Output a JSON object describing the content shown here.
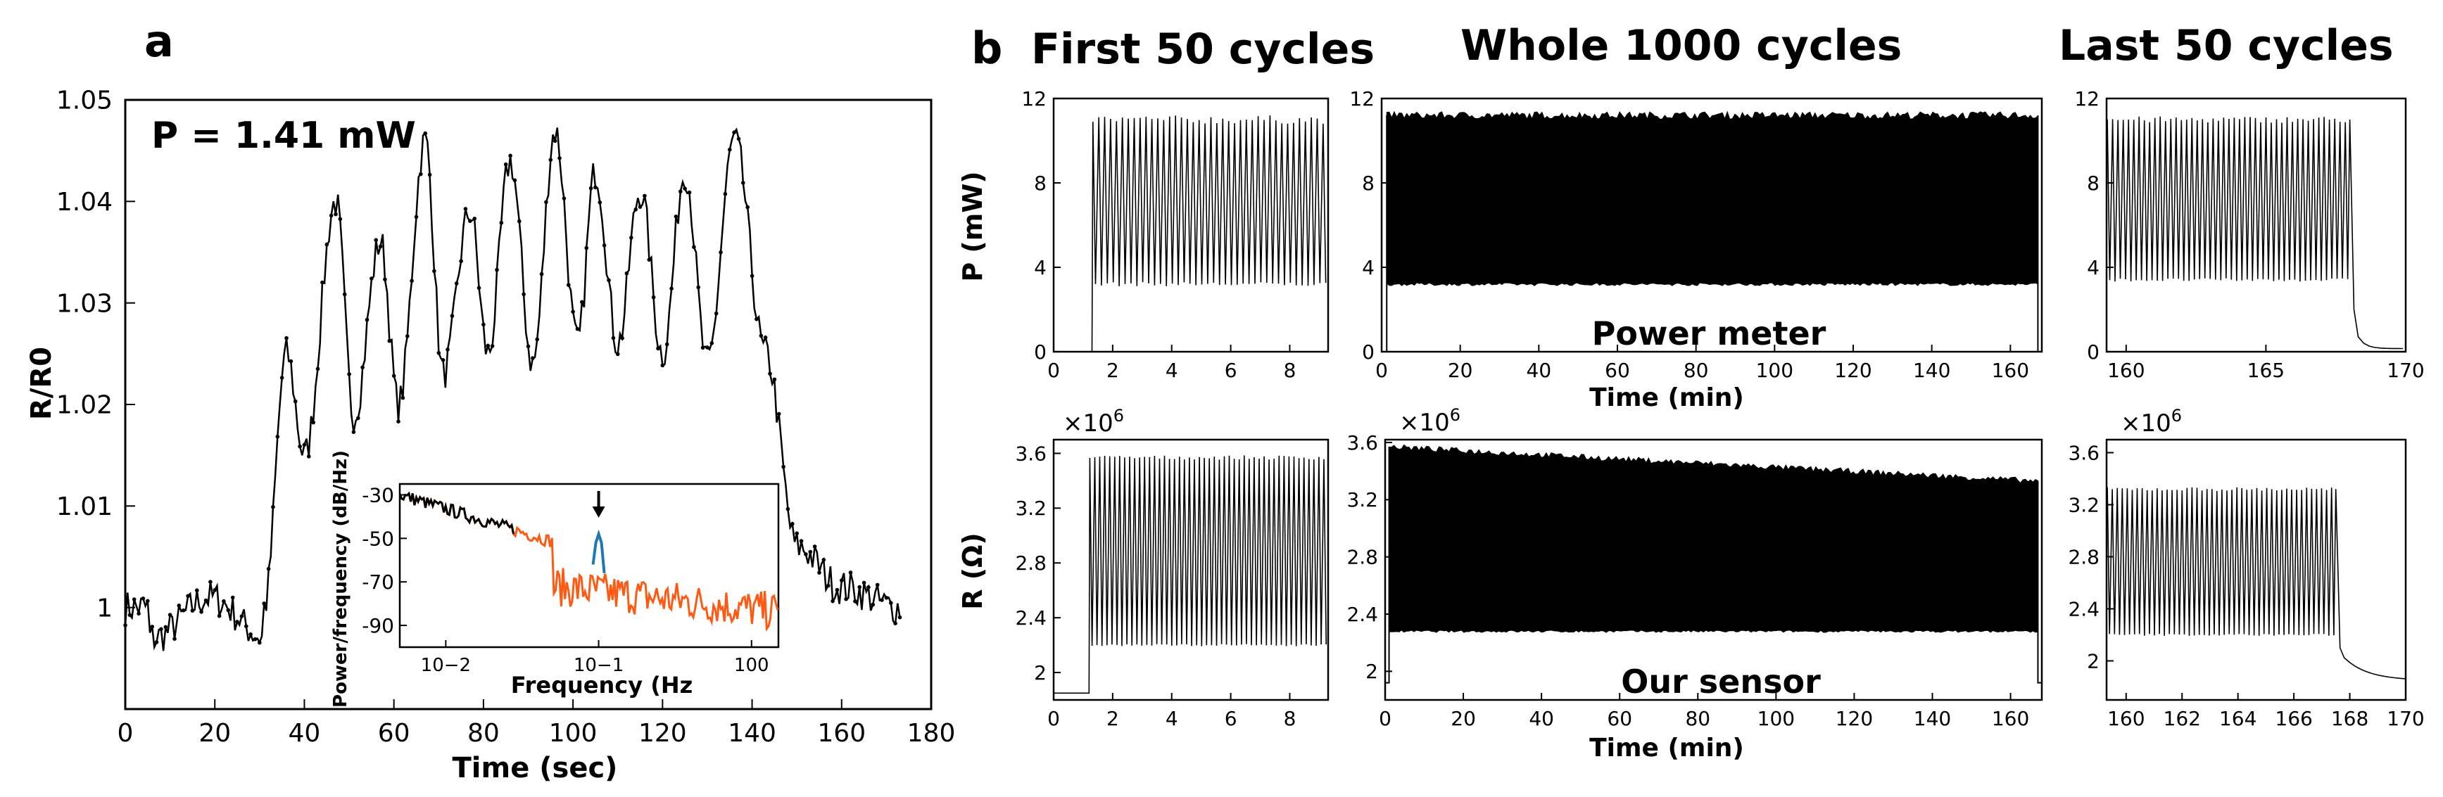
{
  "panel_labels": {
    "a": "a",
    "b": "b"
  },
  "column_titles": {
    "first": "First 50 cycles",
    "whole": "Whole 1000 cycles",
    "last": "Last 50 cycles"
  },
  "chart_data": [
    {
      "id": "a_main",
      "type": "line",
      "annotation": "P = 1.41 mW",
      "xlabel": "Time (sec)",
      "ylabel": "R/R0",
      "xlim": [
        0,
        180
      ],
      "ylim": [
        0.99,
        1.05
      ],
      "x_ticks": [
        "0",
        "20",
        "40",
        "60",
        "80",
        "100",
        "120",
        "140",
        "160",
        "180"
      ],
      "y_ticks": [
        "1",
        "1.01",
        "1.02",
        "1.03",
        "1.04",
        "1.05"
      ],
      "baseline": 1.0,
      "peaks": [
        {
          "x": 36,
          "y": 1.025
        },
        {
          "x": 47,
          "y": 1.04
        },
        {
          "x": 57,
          "y": 1.036
        },
        {
          "x": 67,
          "y": 1.046
        },
        {
          "x": 77,
          "y": 1.039
        },
        {
          "x": 86,
          "y": 1.044
        },
        {
          "x": 96,
          "y": 1.047
        },
        {
          "x": 105,
          "y": 1.043
        },
        {
          "x": 115,
          "y": 1.041
        },
        {
          "x": 125,
          "y": 1.043
        },
        {
          "x": 136,
          "y": 1.046
        }
      ],
      "troughs": [
        {
          "x": 40,
          "y": 1.015
        },
        {
          "x": 51,
          "y": 1.019
        },
        {
          "x": 61,
          "y": 1.02
        },
        {
          "x": 71,
          "y": 1.023
        },
        {
          "x": 81,
          "y": 1.025
        },
        {
          "x": 91,
          "y": 1.024
        },
        {
          "x": 101,
          "y": 1.026
        },
        {
          "x": 110,
          "y": 1.026
        },
        {
          "x": 120,
          "y": 1.025
        },
        {
          "x": 130,
          "y": 1.024
        }
      ],
      "signal_window": [
        31,
        143
      ]
    },
    {
      "id": "a_inset",
      "type": "line",
      "xlabel": "Frequency  (Hz",
      "ylabel": "Power/frequency (dB/Hz)",
      "xscale": "log",
      "xlim": [
        0.005,
        1.5
      ],
      "ylim": [
        -100,
        -25
      ],
      "x_ticks": [
        "10−2",
        "10−1",
        "100"
      ],
      "y_ticks": [
        "-30",
        "-50",
        "-70",
        "-90"
      ],
      "peak": {
        "x": 0.1,
        "y": -48
      },
      "colors": {
        "spectrum": "#ff5a14",
        "peak": "#1f77b4",
        "overlay": "#000000"
      }
    },
    {
      "id": "b_power_first",
      "type": "line",
      "xlim": [
        0,
        9.3
      ],
      "ylim": [
        0,
        12
      ],
      "x_ticks": [
        "0",
        "2",
        "4",
        "6",
        "8"
      ],
      "y_ticks": [
        "0",
        "4",
        "8",
        "12"
      ],
      "ylabel": "P (mW)",
      "low": 3.2,
      "high": 11.0,
      "onset": 1.3,
      "cycles": 40
    },
    {
      "id": "b_power_whole",
      "type": "line",
      "xlim": [
        0,
        168
      ],
      "ylim": [
        0,
        12
      ],
      "x_ticks": [
        "0",
        "20",
        "40",
        "60",
        "80",
        "100",
        "120",
        "140",
        "160"
      ],
      "y_ticks": [
        "0",
        "4",
        "8",
        "12"
      ],
      "xlabel": "Time (min)",
      "annotation": "Power meter",
      "low": 3.2,
      "high": 11.2,
      "onset": 1.3,
      "end": 167
    },
    {
      "id": "b_power_last",
      "type": "line",
      "xlim": [
        159.3,
        170
      ],
      "ylim": [
        0,
        12
      ],
      "x_ticks": [
        "160",
        "165",
        "170"
      ],
      "y_ticks": [
        "0",
        "4",
        "8",
        "12"
      ],
      "low": 3.4,
      "high": 11.0,
      "end": 168.0,
      "cycles": 46
    },
    {
      "id": "b_sensor_first",
      "type": "line",
      "xlim": [
        0,
        9.3
      ],
      "ylim": [
        1.8,
        3.7
      ],
      "x_ticks": [
        "0",
        "2",
        "4",
        "6",
        "8"
      ],
      "y_ticks": [
        "2",
        "2.4",
        "2.8",
        "3.2",
        "3.6"
      ],
      "ylabel": "R (Ω)",
      "multiplier": "×10",
      "low": 2.2,
      "high": 3.57,
      "onset": 1.2,
      "cycles": 48
    },
    {
      "id": "b_sensor_whole",
      "type": "line",
      "xlim": [
        0,
        168
      ],
      "ylim": [
        1.8,
        3.62
      ],
      "x_ticks": [
        "0",
        "20",
        "40",
        "60",
        "80",
        "100",
        "120",
        "140",
        "160"
      ],
      "y_ticks": [
        "2",
        "2.4",
        "2.8",
        "3.2",
        "3.6"
      ],
      "xlabel": "Time (min)",
      "multiplier": "×10",
      "annotation": "Our sensor",
      "low": 2.28,
      "high_start": 3.57,
      "high_end": 3.33,
      "onset": 1.0,
      "end": 167
    },
    {
      "id": "b_sensor_last",
      "type": "line",
      "xlim": [
        159.3,
        170
      ],
      "ylim": [
        1.7,
        3.7
      ],
      "x_ticks": [
        "160",
        "162",
        "164",
        "166",
        "168",
        "170"
      ],
      "y_ticks": [
        "2",
        "2.4",
        "2.8",
        "3.2",
        "3.6"
      ],
      "multiplier": "×10",
      "low": 2.2,
      "high": 3.32,
      "end": 167.5,
      "cycles": 46
    }
  ]
}
